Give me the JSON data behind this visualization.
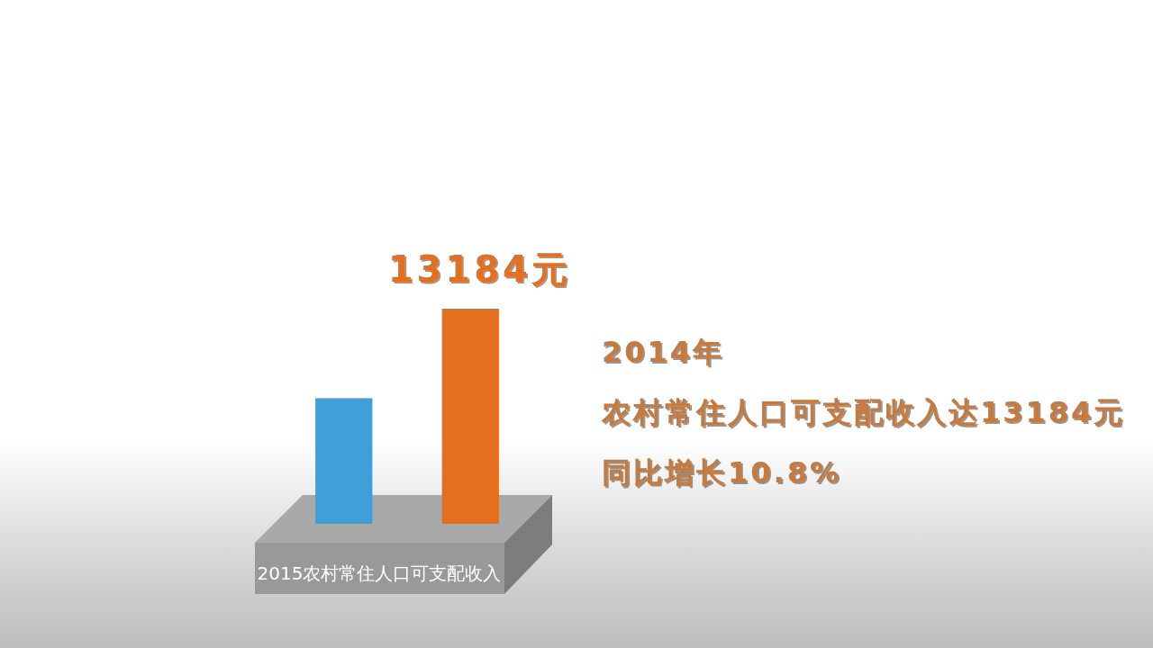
{
  "chart_data": {
    "type": "bar",
    "categories": [
      null,
      null
    ],
    "values": [
      7700,
      13184
    ],
    "colors": [
      "#3f9fd8",
      "#e4701f"
    ],
    "value_labels": [
      null,
      "13184元"
    ],
    "xlabel": "2015农村常住人口可支配收入",
    "annotations": [
      "2014年",
      "农村常住人口可支配收入达13184元",
      "同比增长10.8%"
    ]
  }
}
